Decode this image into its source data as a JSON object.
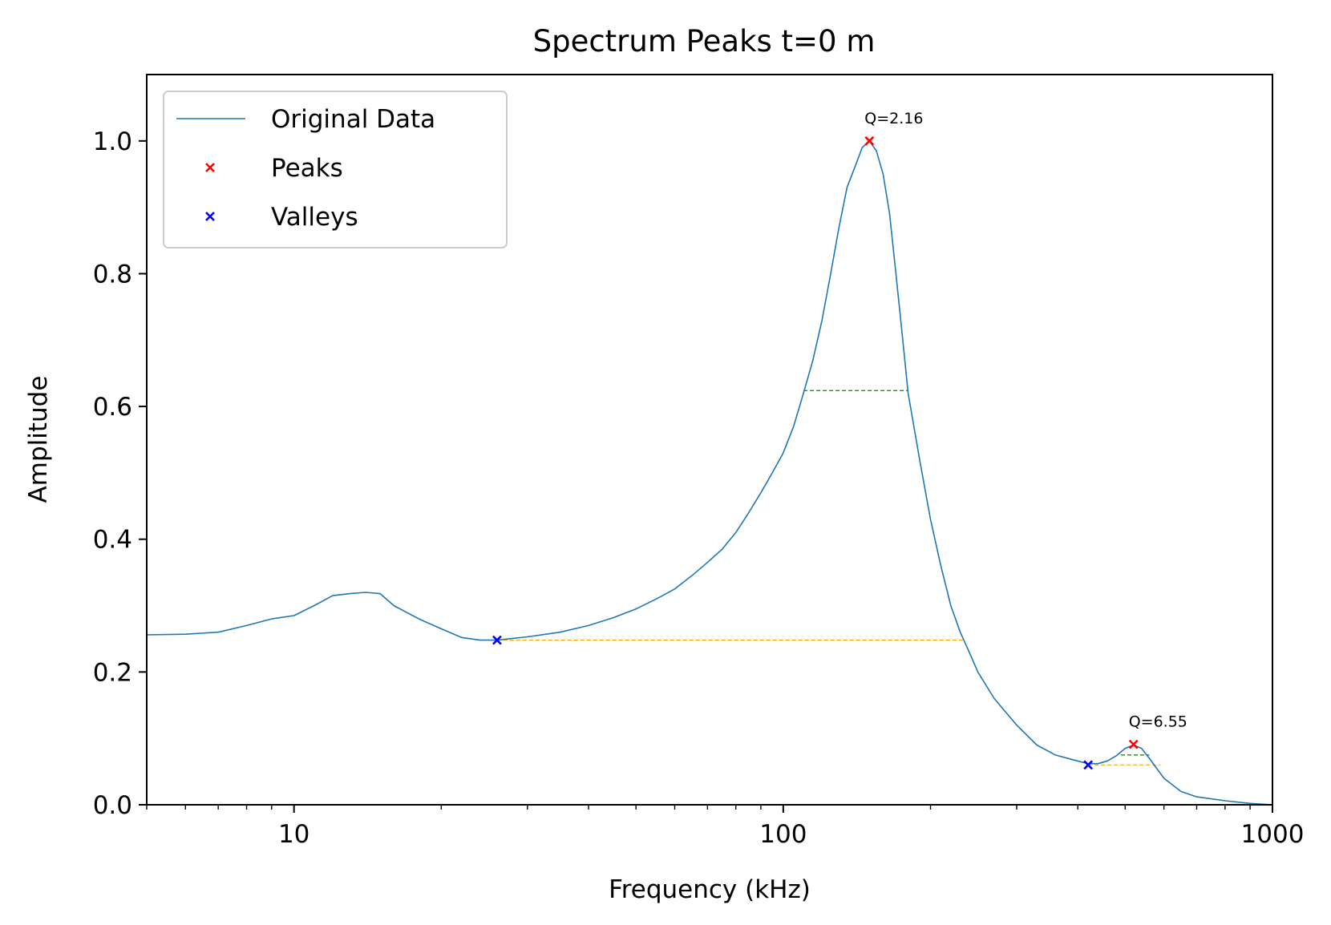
{
  "chart_data": {
    "type": "line",
    "title": "Spectrum Peaks t=0 m",
    "xlabel": "Frequency (kHz)",
    "ylabel": "Amplitude",
    "xscale": "log",
    "xlim": [
      5,
      1000
    ],
    "ylim": [
      0,
      1.1
    ],
    "x_ticks": [
      10,
      100,
      1000
    ],
    "x_tick_labels": [
      "10",
      "100",
      "1000"
    ],
    "y_ticks": [
      0.0,
      0.2,
      0.4,
      0.6,
      0.8,
      1.0
    ],
    "y_tick_labels": [
      "0.0",
      "0.2",
      "0.4",
      "0.6",
      "0.8",
      "1.0"
    ],
    "grid": false,
    "legend_position": "top-left",
    "legend": [
      "Original Data",
      "Peaks",
      "Valleys"
    ],
    "colors": {
      "line": "#1f77b4",
      "peaks": "#ff0000",
      "valleys": "#0000ff",
      "half_width": "#008000",
      "base": "#ffa500"
    },
    "series": [
      {
        "name": "Original Data",
        "x": [
          5,
          6,
          7,
          8,
          9,
          10,
          11,
          12,
          13,
          14,
          15,
          16,
          18,
          20,
          22,
          24,
          26,
          30,
          35,
          40,
          45,
          50,
          55,
          60,
          65,
          70,
          75,
          80,
          85,
          90,
          95,
          100,
          105,
          110,
          115,
          120,
          125,
          130,
          135,
          140,
          145,
          150,
          155,
          160,
          165,
          170,
          175,
          180,
          190,
          200,
          210,
          220,
          230,
          240,
          250,
          270,
          300,
          330,
          360,
          390,
          420,
          440,
          460,
          480,
          500,
          520,
          540,
          560,
          600,
          650,
          700,
          800,
          900,
          1000
        ],
        "y": [
          0.256,
          0.257,
          0.26,
          0.27,
          0.28,
          0.285,
          0.3,
          0.315,
          0.318,
          0.32,
          0.318,
          0.3,
          0.28,
          0.265,
          0.252,
          0.248,
          0.248,
          0.253,
          0.26,
          0.27,
          0.282,
          0.295,
          0.31,
          0.325,
          0.345,
          0.365,
          0.385,
          0.41,
          0.44,
          0.47,
          0.5,
          0.53,
          0.57,
          0.62,
          0.67,
          0.73,
          0.8,
          0.87,
          0.93,
          0.96,
          0.99,
          1.0,
          0.985,
          0.95,
          0.89,
          0.8,
          0.71,
          0.62,
          0.52,
          0.43,
          0.36,
          0.3,
          0.26,
          0.23,
          0.2,
          0.16,
          0.12,
          0.09,
          0.075,
          0.068,
          0.062,
          0.062,
          0.066,
          0.074,
          0.085,
          0.09,
          0.085,
          0.07,
          0.04,
          0.02,
          0.012,
          0.006,
          0.002,
          0.0
        ]
      },
      {
        "name": "Peaks",
        "points": [
          {
            "x": 150,
            "y": 1.0,
            "label": "Q=2.16"
          },
          {
            "x": 520,
            "y": 0.091,
            "label": "Q=6.55"
          }
        ]
      },
      {
        "name": "Valleys",
        "points": [
          {
            "x": 26,
            "y": 0.248
          },
          {
            "x": 420,
            "y": 0.06
          }
        ]
      }
    ],
    "half_width_lines": [
      {
        "x1": 110,
        "x2": 180,
        "y": 0.624
      },
      {
        "x1": 490,
        "x2": 560,
        "y": 0.075
      }
    ],
    "base_lines": [
      {
        "x1": 26,
        "x2": 235,
        "y": 0.248
      },
      {
        "x1": 420,
        "x2": 590,
        "y": 0.06
      }
    ]
  }
}
